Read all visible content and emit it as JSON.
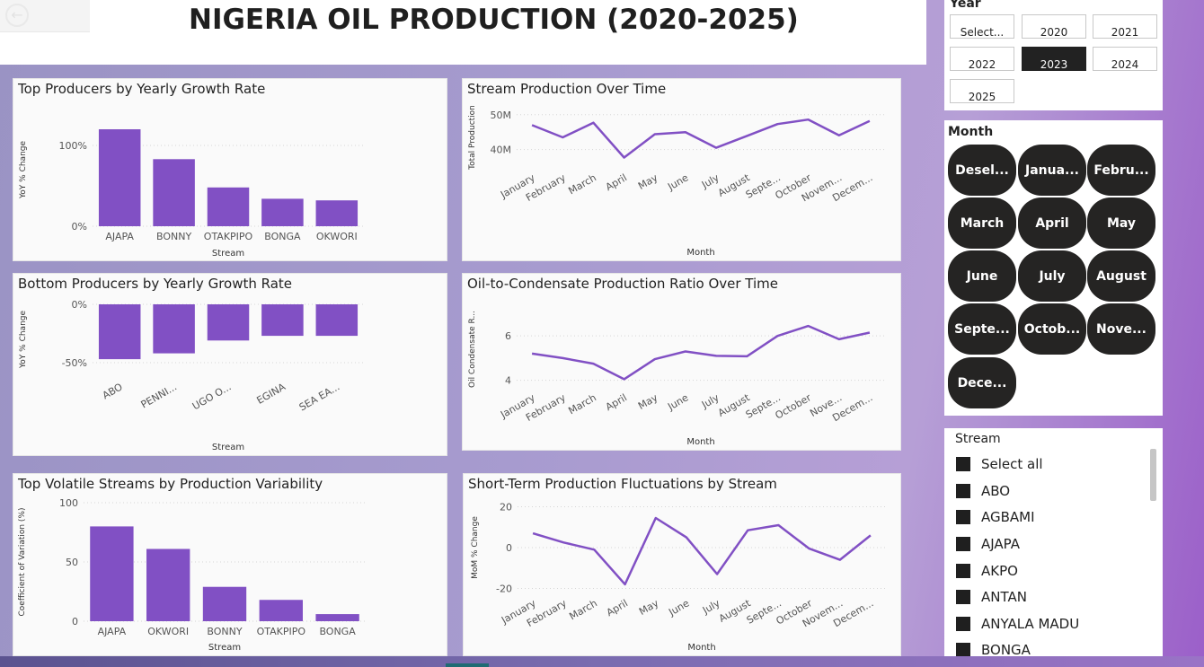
{
  "title": "NIGERIA OIL PRODUCTION (2020-2025)",
  "colors": {
    "accent": "#8150c4",
    "dark_pill": "#252423",
    "selected": "#222222"
  },
  "year_slicer": {
    "title": "Year",
    "options": [
      "Select...",
      "2020",
      "2021",
      "2022",
      "2023",
      "2024",
      "2025"
    ],
    "selected": "2023"
  },
  "month_slicer": {
    "title": "Month",
    "options": [
      "Desel...",
      "Janua...",
      "Febru...",
      "March",
      "April",
      "May",
      "June",
      "July",
      "August",
      "Septe...",
      "Octob...",
      "Nove...",
      "Dece..."
    ]
  },
  "stream_slicer": {
    "title": "Stream",
    "items": [
      "Select all",
      "ABO",
      "AGBAMI",
      "AJAPA",
      "AKPO",
      "ANTAN",
      "ANYALA MADU",
      "BONGA"
    ]
  },
  "chart_data": [
    {
      "id": "top_growth",
      "type": "bar",
      "title": "Top Producers by Yearly Growth Rate",
      "xlabel": "Stream",
      "ylabel": "YoY % Change",
      "categories": [
        "AJAPA",
        "BONNY",
        "OTAKPIPO",
        "BONGA",
        "OKWORI"
      ],
      "values": [
        120,
        83,
        48,
        34,
        32
      ],
      "yticks": [
        0,
        100
      ],
      "ytick_labels": [
        "0%",
        "100%"
      ],
      "ylim": [
        0,
        140
      ]
    },
    {
      "id": "stream_production",
      "type": "line",
      "title": "Stream Production Over Time",
      "xlabel": "Month",
      "ylabel": "Total Production",
      "categories": [
        "January",
        "February",
        "March",
        "April",
        "May",
        "June",
        "July",
        "August",
        "Septe...",
        "October",
        "Novem...",
        "Decem..."
      ],
      "values": [
        47.0,
        43.5,
        47.7,
        37.7,
        44.4,
        45.0,
        40.5,
        43.9,
        47.3,
        48.6,
        44.1,
        48.2
      ],
      "yticks": [
        40,
        50
      ],
      "ytick_labels": [
        "40M",
        "50M"
      ],
      "ylim": [
        35,
        52
      ]
    },
    {
      "id": "bottom_growth",
      "type": "bar",
      "title": "Bottom Producers by Yearly Growth Rate",
      "xlabel": "Stream",
      "ylabel": "YoY % Change",
      "categories": [
        "ABO",
        "PENNI...",
        "UGO O...",
        "EGINA",
        "SEA EA..."
      ],
      "values": [
        -47,
        -42,
        -31,
        -27,
        -27
      ],
      "yticks": [
        0,
        -50
      ],
      "ytick_labels": [
        "0%",
        "-50%"
      ],
      "ylim": [
        -60,
        0
      ]
    },
    {
      "id": "oil_condensate_ratio",
      "type": "line",
      "title": "Oil-to-Condensate Production Ratio Over Time",
      "xlabel": "Month",
      "ylabel": "Oil Condensate R...",
      "categories": [
        "January",
        "February",
        "March",
        "April",
        "May",
        "June",
        "July",
        "August",
        "Septe...",
        "October",
        "Nove...",
        "Decem..."
      ],
      "values": [
        5.2,
        5.0,
        4.75,
        4.05,
        4.95,
        5.3,
        5.1,
        5.08,
        6.0,
        6.45,
        5.85,
        6.15
      ],
      "yticks": [
        4,
        6
      ],
      "ytick_labels": [
        "4",
        "6"
      ],
      "ylim": [
        3.7,
        7.1
      ]
    },
    {
      "id": "volatility",
      "type": "bar",
      "title": "Top Volatile Streams by Production Variability",
      "xlabel": "Stream",
      "ylabel": "Coefficient of Variation (%)",
      "categories": [
        "AJAPA",
        "OKWORI",
        "BONNY",
        "OTAKPIPO",
        "BONGA"
      ],
      "values": [
        80,
        61,
        29,
        18,
        6
      ],
      "yticks": [
        0,
        50,
        100
      ],
      "ytick_labels": [
        "0",
        "50",
        "100"
      ],
      "ylim": [
        0,
        100
      ]
    },
    {
      "id": "mom_fluctuations",
      "type": "line",
      "title": "Short-Term Production Fluctuations by Stream",
      "xlabel": "Month",
      "ylabel": "MoM % Change",
      "categories": [
        "January",
        "February",
        "March",
        "April",
        "May",
        "June",
        "July",
        "August",
        "Septe...",
        "October",
        "Novem...",
        "Decem..."
      ],
      "values": [
        7,
        2.5,
        -1,
        -18,
        14.5,
        5,
        -13,
        8.5,
        11,
        -0.5,
        -6,
        6
      ],
      "yticks": [
        -20,
        0,
        20
      ],
      "ytick_labels": [
        "-20",
        "0",
        "20"
      ],
      "ylim": [
        -22,
        22
      ]
    }
  ]
}
